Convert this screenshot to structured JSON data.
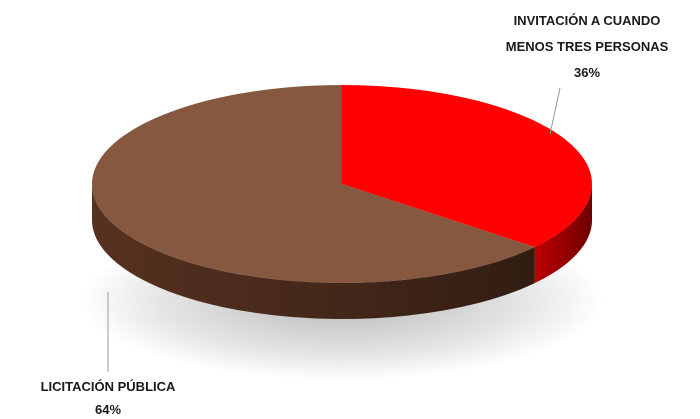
{
  "chart_data": {
    "type": "pie",
    "style": "3d",
    "title": "",
    "slices": [
      {
        "label": "INVITACIÓN A CUANDO",
        "label2": "MENOS TRES PERSONAS",
        "pct_label": "36%",
        "value": 36,
        "color": "#ff0000",
        "side_color": "#c40000"
      },
      {
        "label": "LICITACIÓN PÚBLICA",
        "label2": "",
        "pct_label": "64%",
        "value": 64,
        "color": "#875840",
        "side_color": "#5a3422"
      }
    ],
    "legend": "none",
    "data_labels": "outside-with-leader-lines"
  }
}
